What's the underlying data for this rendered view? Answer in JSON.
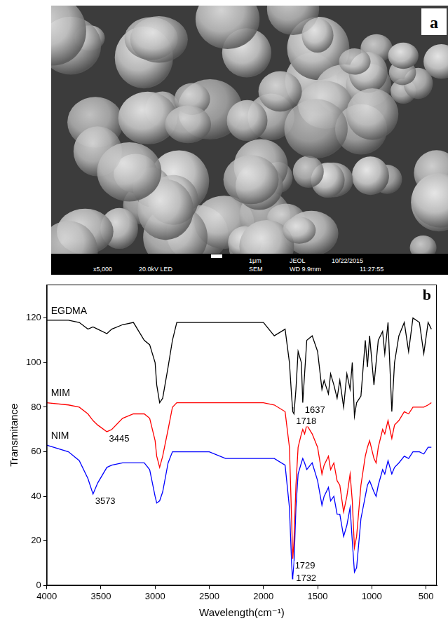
{
  "image_panel": {
    "label": "a",
    "footer_row1": [
      "1μm",
      "JEOL",
      "10/22/2015"
    ],
    "footer_row2": [
      "x5,000",
      "20.0kV LED",
      "SEM",
      "WD 9.9mm",
      "11:27:55"
    ]
  },
  "chart_data": {
    "type": "line",
    "panel_label": "b",
    "x_label": "Wavelength(cm⁻¹)",
    "y_label": "Transmitance",
    "x": [
      4000,
      3800,
      3700,
      3620,
      3573,
      3530,
      3445,
      3400,
      3300,
      3200,
      3100,
      3050,
      3000,
      2985,
      2958,
      2930,
      2880,
      2840,
      2800,
      2500,
      2350,
      2000,
      1900,
      1800,
      1760,
      1740,
      1732,
      1729,
      1718,
      1700,
      1680,
      1650,
      1637,
      1620,
      1600,
      1550,
      1500,
      1460,
      1440,
      1400,
      1380,
      1350,
      1320,
      1295,
      1260,
      1230,
      1200,
      1180,
      1160,
      1140,
      1100,
      1060,
      1040,
      1020,
      980,
      960,
      940,
      900,
      880,
      850,
      815,
      790,
      750,
      700,
      660,
      620,
      560,
      520,
      480,
      450
    ],
    "series": [
      {
        "name": "EGDMA",
        "color": "#000000",
        "values": [
          119,
          119,
          118,
          115,
          116,
          115,
          113,
          115,
          117,
          118,
          110,
          108,
          100,
          90,
          82,
          84,
          98,
          110,
          118,
          118,
          118,
          118,
          112,
          115,
          100,
          85,
          80,
          78,
          77,
          88,
          105,
          100,
          82,
          95,
          110,
          112,
          105,
          88,
          92,
          86,
          95,
          90,
          84,
          92,
          80,
          95,
          88,
          100,
          76,
          82,
          85,
          110,
          98,
          112,
          90,
          100,
          110,
          114,
          104,
          118,
          78,
          100,
          112,
          118,
          105,
          120,
          118,
          104,
          118,
          115
        ],
        "peak_labels": [
          1718,
          1637
        ]
      },
      {
        "name": "MIM",
        "color": "#ff0000",
        "values": [
          82,
          81,
          80,
          77,
          74,
          72,
          69,
          70,
          75,
          77,
          77,
          75,
          65,
          58,
          53,
          58,
          70,
          80,
          82,
          82,
          82,
          82,
          81,
          78,
          62,
          30,
          16,
          12,
          20,
          45,
          62,
          68,
          70,
          68,
          72,
          68,
          62,
          50,
          54,
          58,
          52,
          55,
          47,
          45,
          33,
          40,
          50,
          38,
          17,
          22,
          45,
          58,
          62,
          65,
          57,
          55,
          62,
          70,
          68,
          74,
          66,
          72,
          74,
          78,
          77,
          80,
          80,
          80,
          81,
          82
        ],
        "peak_labels": [
          3445,
          1729
        ]
      },
      {
        "name": "NIM",
        "color": "#0000ff",
        "values": [
          63,
          60,
          56,
          48,
          41,
          46,
          53,
          54,
          55,
          55,
          55,
          52,
          40,
          37,
          38,
          42,
          55,
          60,
          60,
          60,
          57,
          57,
          57,
          54,
          35,
          10,
          3,
          4,
          10,
          35,
          50,
          55,
          57,
          55,
          52,
          55,
          47,
          36,
          40,
          44,
          38,
          40,
          32,
          32,
          22,
          27,
          35,
          20,
          6,
          8,
          30,
          40,
          45,
          47,
          42,
          40,
          45,
          52,
          50,
          56,
          50,
          53,
          55,
          58,
          57,
          60,
          60,
          59,
          62,
          62
        ],
        "peak_labels": [
          3573,
          1732
        ]
      }
    ],
    "xlim": [
      4000,
      400
    ],
    "ylim": [
      0,
      135
    ],
    "xticks": [
      4000,
      3500,
      3000,
      2500,
      2000,
      1500,
      1000,
      500
    ],
    "yticks": [
      0,
      20,
      40,
      60,
      80,
      100,
      120
    ],
    "grid": false
  }
}
